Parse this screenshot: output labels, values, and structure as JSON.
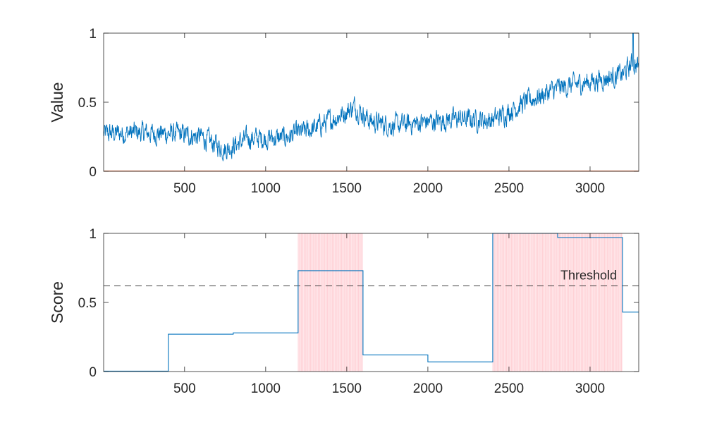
{
  "colors": {
    "line": "#0072BD",
    "highlight": "#FFB8BF",
    "axis": "#262626",
    "threshold": "#262626",
    "baseline": "#D95319"
  },
  "chart_data": [
    {
      "type": "line",
      "title": "",
      "xlabel": "",
      "ylabel": "Value",
      "xlim": [
        1,
        3300
      ],
      "ylim": [
        0,
        1
      ],
      "xticks": [
        "500",
        "1000",
        "1500",
        "2000",
        "2500",
        "3000"
      ],
      "yticks": [
        "0",
        "0.5",
        "1"
      ],
      "trend_anchors": [
        {
          "x": 1,
          "y": 0.27
        },
        {
          "x": 200,
          "y": 0.28
        },
        {
          "x": 450,
          "y": 0.27
        },
        {
          "x": 600,
          "y": 0.25
        },
        {
          "x": 750,
          "y": 0.16
        },
        {
          "x": 900,
          "y": 0.24
        },
        {
          "x": 1100,
          "y": 0.24
        },
        {
          "x": 1300,
          "y": 0.31
        },
        {
          "x": 1450,
          "y": 0.4
        },
        {
          "x": 1550,
          "y": 0.47
        },
        {
          "x": 1650,
          "y": 0.36
        },
        {
          "x": 1800,
          "y": 0.33
        },
        {
          "x": 2000,
          "y": 0.36
        },
        {
          "x": 2200,
          "y": 0.38
        },
        {
          "x": 2400,
          "y": 0.37
        },
        {
          "x": 2600,
          "y": 0.5
        },
        {
          "x": 2800,
          "y": 0.6
        },
        {
          "x": 3000,
          "y": 0.65
        },
        {
          "x": 3200,
          "y": 0.7
        },
        {
          "x": 3260,
          "y": 0.78
        },
        {
          "x": 3300,
          "y": 0.76
        }
      ],
      "peak": {
        "x": 3265,
        "y": 1.0
      },
      "noise_amplitude": 0.06,
      "grid": false,
      "legend": "none"
    },
    {
      "type": "line",
      "title": "",
      "xlabel": "",
      "ylabel": "Score",
      "xlim": [
        1,
        3300
      ],
      "ylim": [
        0,
        1
      ],
      "xticks": [
        "500",
        "1000",
        "1500",
        "2000",
        "2500",
        "3000"
      ],
      "yticks": [
        "0",
        "0.5",
        "1"
      ],
      "step_x": [
        1,
        400,
        800,
        1200,
        1600,
        2000,
        2400,
        2800,
        3200,
        3300
      ],
      "step_values": [
        0.003,
        0.27,
        0.28,
        0.73,
        0.12,
        0.07,
        1.0,
        0.97,
        0.43
      ],
      "threshold": {
        "value": 0.62,
        "label": "Threshold"
      },
      "highlight_ranges": [
        [
          1200,
          1600
        ],
        [
          2400,
          3200
        ]
      ],
      "grid": false,
      "legend": "none"
    }
  ]
}
